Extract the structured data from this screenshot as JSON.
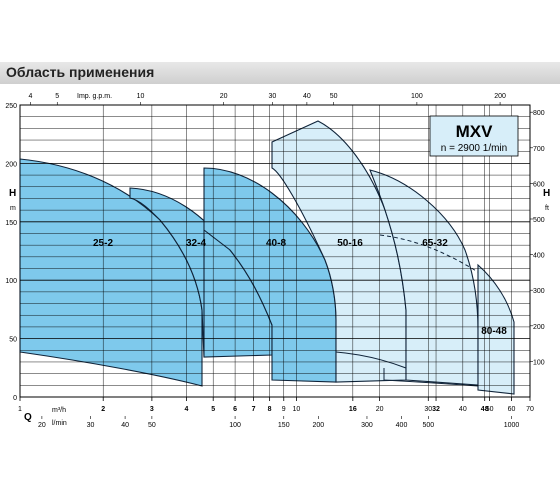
{
  "header": {
    "title": "Область применения"
  },
  "chart_data": {
    "type": "area",
    "series_label": "MXV",
    "speed_label": "n = 2900 1/min",
    "x_axis_bottom": {
      "label": "Q",
      "unit_primary": "m³/h",
      "unit_secondary": "l/min",
      "scale": "log",
      "ticks_primary": [
        "1",
        "2",
        "3",
        "4",
        "5",
        "6",
        "7",
        "8",
        "9",
        "10",
        "16",
        "20",
        "30",
        "32",
        "40",
        "48",
        "50",
        "60",
        "70"
      ],
      "ticks_secondary": [
        "20",
        "30",
        "40",
        "50",
        "100",
        "150",
        "200",
        "300",
        "400",
        "500",
        "1000"
      ]
    },
    "x_axis_top": {
      "label": "Imp. g.p.m.",
      "ticks": [
        "4",
        "5",
        "10",
        "20",
        "30",
        "40",
        "50",
        "100",
        "200"
      ]
    },
    "y_axis_left": {
      "label": "H",
      "unit": "m",
      "range": [
        0,
        250
      ],
      "ticks": [
        "0",
        "50",
        "100",
        "150",
        "200",
        "250"
      ]
    },
    "y_axis_right": {
      "label": "H",
      "unit": "ft",
      "ticks": [
        "100",
        "200",
        "300",
        "400",
        "500",
        "600",
        "700",
        "800"
      ]
    },
    "areas": [
      {
        "name": "25-2",
        "color": "#7ec9ec",
        "q_min": 1,
        "q_max": 4.4,
        "h_max": 212,
        "h_min": 45
      },
      {
        "name": "32-4",
        "color": "#7ec9ec",
        "q_min": 2.5,
        "q_max": 4.6,
        "h_max": 190,
        "h_min": 35
      },
      {
        "name": "40-8",
        "color": "#7ec9ec",
        "q_min": 4.6,
        "q_max": 8.0,
        "h_max": 205,
        "h_min": 30
      },
      {
        "name": "50-16",
        "color": "#d7eef9",
        "q_min": 8.0,
        "q_max": 28,
        "h_max": 245,
        "h_min": 20
      },
      {
        "name": "65-32",
        "color": "#d7eef9",
        "q_min": 16,
        "q_max": 48,
        "h_max": 205,
        "h_min": 15
      },
      {
        "name": "80-48",
        "color": "#d7eef9",
        "q_min": 48,
        "q_max": 60,
        "h_max": 130,
        "h_min": 12
      }
    ],
    "grid": true,
    "legend": "top-right"
  }
}
